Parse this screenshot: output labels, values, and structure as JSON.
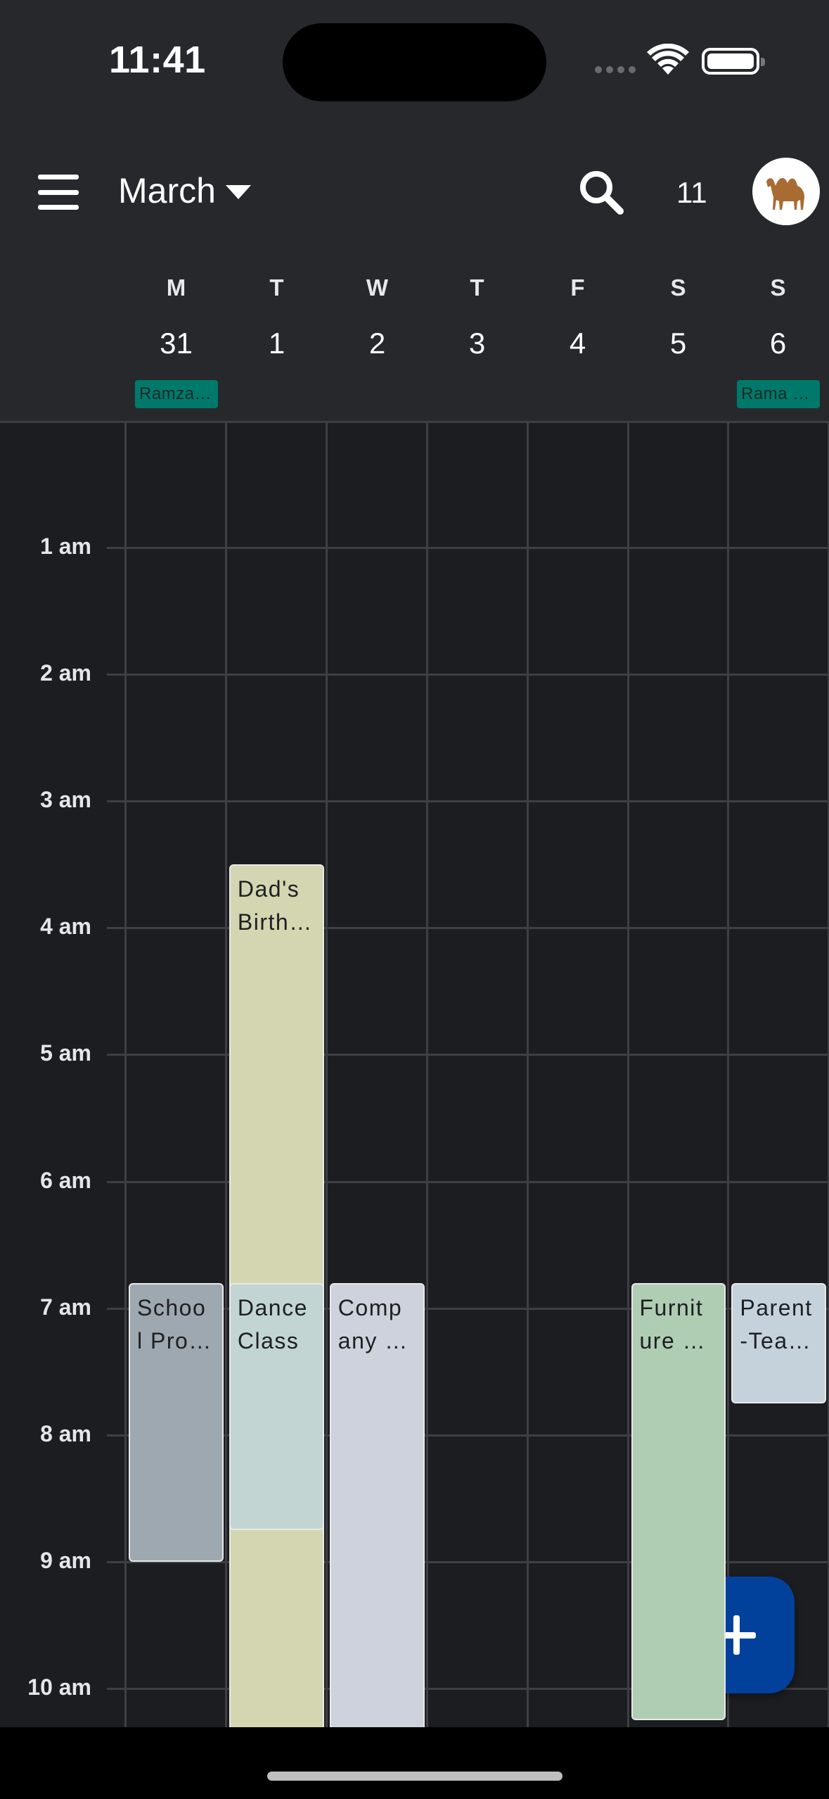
{
  "status_bar": {
    "time": "11:41"
  },
  "header": {
    "month": "March",
    "today_number": "11",
    "avatar": "camel-avatar"
  },
  "days": [
    {
      "letter": "M",
      "date": "31"
    },
    {
      "letter": "T",
      "date": "1"
    },
    {
      "letter": "W",
      "date": "2"
    },
    {
      "letter": "T",
      "date": "3"
    },
    {
      "letter": "F",
      "date": "4"
    },
    {
      "letter": "S",
      "date": "5"
    },
    {
      "letter": "S",
      "date": "6"
    }
  ],
  "all_day_events": [
    {
      "title": "Ramza…",
      "day": 0,
      "color": "#00796b"
    },
    {
      "title": "Rama …",
      "day": 6,
      "color": "#00796b"
    }
  ],
  "hours": [
    "1 am",
    "2 am",
    "3 am",
    "4 am",
    "5 am",
    "6 am",
    "7 am",
    "8 am",
    "9 am",
    "10 am"
  ],
  "events": [
    {
      "title": "Dad's Birth…",
      "day": 1,
      "start_hour": 3.5,
      "end_hour": 11,
      "color": "#d3d6b0"
    },
    {
      "title": "Schoo l Pro…",
      "day": 0,
      "start_hour": 6.8,
      "end_hour": 9,
      "color": "#9ea8b0"
    },
    {
      "title": "Dance Class",
      "day": 1,
      "start_hour": 6.8,
      "end_hour": 8.75,
      "color": "#c2d5d2"
    },
    {
      "title": "Comp any …",
      "day": 2,
      "start_hour": 6.8,
      "end_hour": 11,
      "color": "#cdd2dc"
    },
    {
      "title": "Furnit ure …",
      "day": 5,
      "start_hour": 6.8,
      "end_hour": 10.25,
      "color": "#afcdb3"
    },
    {
      "title": "Parent -Tea…",
      "day": 6,
      "start_hour": 6.8,
      "end_hour": 7.75,
      "color": "#c5d2dc"
    }
  ],
  "fab": {
    "icon": "plus-icon"
  }
}
